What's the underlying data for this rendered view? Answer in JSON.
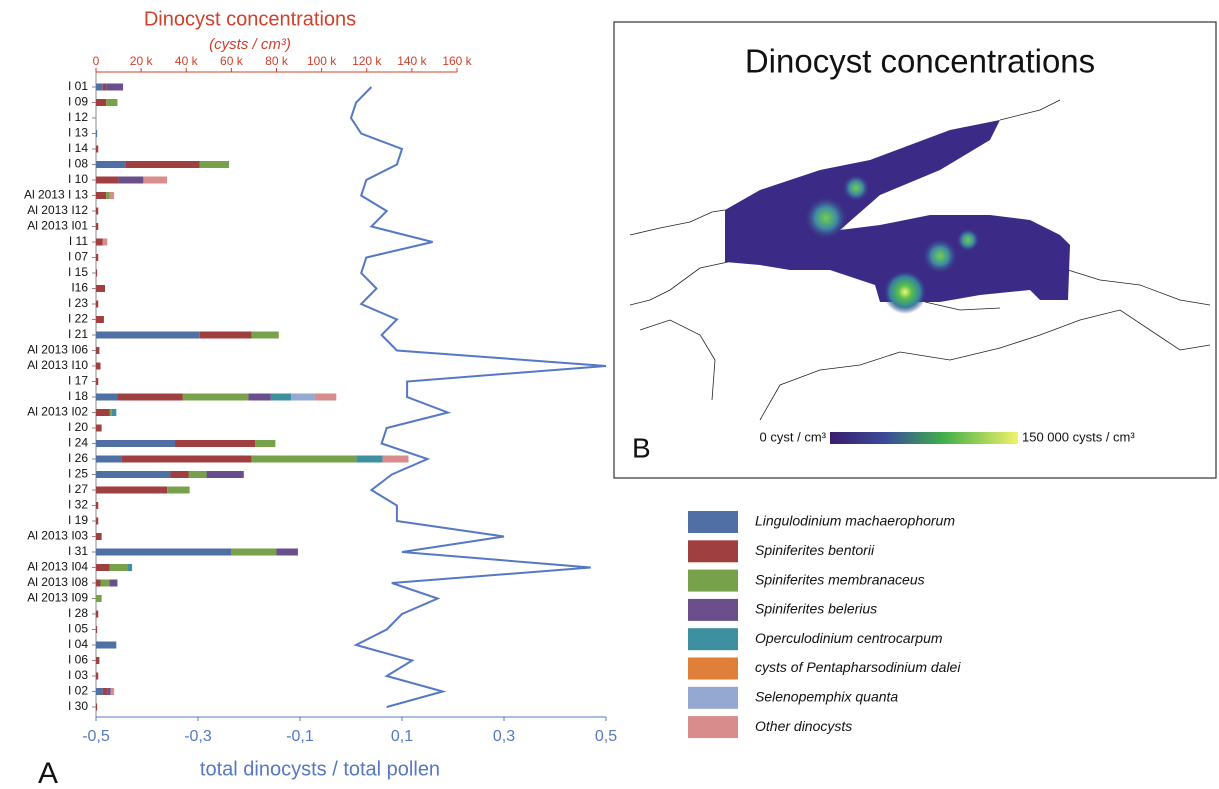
{
  "chart_data": {
    "type": "bar",
    "orientation": "horizontal",
    "stacked": true,
    "title": "Dinocyst concentrations",
    "subtitle": "(cysts / cm³)",
    "x2label": "total dinocysts / total pollen",
    "panel_label": "A",
    "categories": [
      "I 01",
      "I 09",
      "I 12",
      "I 13",
      "I 14",
      "I 08",
      "I 10",
      "Al 2013 I 13",
      "Al 2013 I12",
      "Al 2013 I01",
      "I 11",
      "I 07",
      "I 15",
      "I16",
      "I 23",
      "I 22",
      "I 21",
      "Al 2013 I06",
      "Al 2013 I10",
      "I 17",
      "I 18",
      "Al 2013 I02",
      "I 20",
      "I 24",
      "I 26",
      "I 25",
      "I 27",
      "I 32",
      "I 19",
      "Al 2013 I03",
      "I 31",
      "Al 2013 I04",
      "Al 2013 I08",
      "Al 2013 I09",
      "I 28",
      "I 05",
      "I 04",
      "I 06",
      "I 03",
      "I 02",
      "I 30"
    ],
    "xlim": [
      0,
      160000
    ],
    "xticks": [
      0,
      {
        "value": 20000,
        "label": "20 k"
      },
      {
        "value": 40000,
        "label": "40 k"
      },
      {
        "value": 60000,
        "label": "60 k"
      },
      {
        "value": 80000,
        "label": "80 k"
      },
      {
        "value": 100000,
        "label": "100 k"
      },
      {
        "value": 120000,
        "label": "120 k"
      },
      {
        "value": 140000,
        "label": "140 k"
      },
      {
        "value": 160000,
        "label": "160 k"
      }
    ],
    "x2lim": [
      -0.5,
      0.5
    ],
    "x2ticks": [
      {
        "value": -0.5,
        "label": "-0,5"
      },
      {
        "value": -0.3,
        "label": "-0,3"
      },
      {
        "value": -0.1,
        "label": "-0,1"
      },
      {
        "value": 0.1,
        "label": "0,1"
      },
      {
        "value": 0.3,
        "label": "0,3"
      },
      {
        "value": 0.5,
        "label": "0,5"
      }
    ],
    "series": [
      {
        "name": "Lingulodinium machaerophorum",
        "color": "#4f6fa5",
        "values": [
          3000,
          0,
          0,
          500,
          0,
          13000,
          0,
          0,
          0,
          0,
          0,
          0,
          0,
          0,
          0,
          0,
          46000,
          0,
          0,
          0,
          9500,
          0,
          0,
          35000,
          11500,
          33000,
          0,
          0,
          0,
          0,
          60000,
          0,
          0,
          0,
          0,
          0,
          9000,
          0,
          0,
          3000,
          0
        ]
      },
      {
        "name": "Spiniferites bentorii",
        "color": "#a03f3f",
        "values": [
          1500,
          4500,
          0,
          0,
          1000,
          33000,
          10000,
          4500,
          1000,
          1000,
          3000,
          1000,
          500,
          4000,
          1000,
          3500,
          23000,
          1500,
          2000,
          1000,
          29000,
          6000,
          2500,
          35500,
          57500,
          8000,
          31500,
          1000,
          1000,
          2500,
          0,
          6000,
          2000,
          0,
          1000,
          500,
          0,
          1500,
          1000,
          2000,
          500
        ]
      },
      {
        "name": "Spiniferites membranaceus",
        "color": "#77a14a",
        "values": [
          0,
          5000,
          0,
          0,
          0,
          13000,
          0,
          1500,
          0,
          0,
          0,
          0,
          0,
          0,
          0,
          0,
          12000,
          0,
          0,
          0,
          29000,
          1000,
          0,
          9000,
          46500,
          8000,
          10000,
          0,
          0,
          0,
          20000,
          8000,
          4000,
          2500,
          0,
          0,
          0,
          0,
          0,
          0,
          0
        ]
      },
      {
        "name": "Spiniferites belerius",
        "color": "#6a4f8c",
        "values": [
          7500,
          0,
          0,
          0,
          0,
          0,
          11000,
          0,
          0,
          0,
          0,
          0,
          0,
          0,
          0,
          0,
          0,
          0,
          0,
          0,
          10000,
          0,
          0,
          0,
          0,
          16500,
          0,
          0,
          0,
          0,
          9500,
          0,
          3500,
          0,
          0,
          0,
          0,
          0,
          0,
          1500,
          0
        ]
      },
      {
        "name": "Operculodinium centrocarpum",
        "color": "#3e8fa0",
        "values": [
          0,
          0,
          0,
          0,
          0,
          0,
          0,
          0,
          0,
          0,
          0,
          0,
          0,
          0,
          0,
          0,
          0,
          0,
          0,
          0,
          9000,
          2000,
          0,
          0,
          11500,
          0,
          0,
          0,
          0,
          0,
          0,
          2000,
          0,
          0,
          0,
          0,
          0,
          0,
          0,
          0,
          0
        ]
      },
      {
        "name": "cysts of Pentapharsodinium dalei",
        "color": "#e07f3a",
        "values": [
          0,
          0,
          0,
          0,
          0,
          0,
          0,
          0,
          0,
          0,
          0,
          0,
          0,
          0,
          0,
          0,
          0,
          0,
          0,
          0,
          0,
          0,
          0,
          0,
          0,
          0,
          0,
          0,
          0,
          0,
          0,
          0,
          0,
          0,
          0,
          0,
          0,
          0,
          0,
          0,
          0
        ]
      },
      {
        "name": "Selenopemphix quanta",
        "color": "#95a8d1",
        "values": [
          0,
          0,
          0,
          0,
          0,
          0,
          0,
          0,
          0,
          0,
          0,
          0,
          0,
          0,
          0,
          0,
          0,
          0,
          0,
          0,
          10500,
          0,
          0,
          0,
          0,
          0,
          0,
          0,
          0,
          0,
          0,
          0,
          0,
          0,
          0,
          0,
          0,
          0,
          0,
          0,
          0
        ]
      },
      {
        "name": "Other dinocysts",
        "color": "#d98c8c",
        "values": [
          0,
          0,
          0,
          0,
          0,
          0,
          10500,
          2000,
          0,
          0,
          2000,
          0,
          0,
          0,
          0,
          0,
          0,
          0,
          0,
          0,
          9500,
          0,
          0,
          0,
          11500,
          0,
          0,
          0,
          0,
          0,
          0,
          0,
          0,
          0,
          0,
          0,
          0,
          0,
          0,
          1500,
          0
        ]
      }
    ],
    "line": {
      "axis": "x2",
      "color": "#5578c4",
      "values": [
        0.04,
        0.01,
        0,
        0.02,
        0.1,
        0.09,
        0.03,
        0.02,
        0.07,
        0.04,
        0.16,
        0.03,
        0.02,
        0.05,
        0.02,
        0.09,
        0.06,
        0.09,
        0.5,
        0.11,
        0.11,
        0.19,
        0.07,
        0.06,
        0.15,
        0.08,
        0.04,
        0.09,
        0.09,
        0.3,
        0.1,
        0.47,
        0.08,
        0.17,
        0.1,
        0.07,
        0.01,
        0.12,
        0.07,
        0.18,
        0.07
      ]
    }
  },
  "map": {
    "title": "Dinocyst concentrations",
    "panel_label": "B",
    "colorbar_min_label": "0 cyst / cm³",
    "colorbar_max_label": "150 000 cysts / cm³"
  }
}
